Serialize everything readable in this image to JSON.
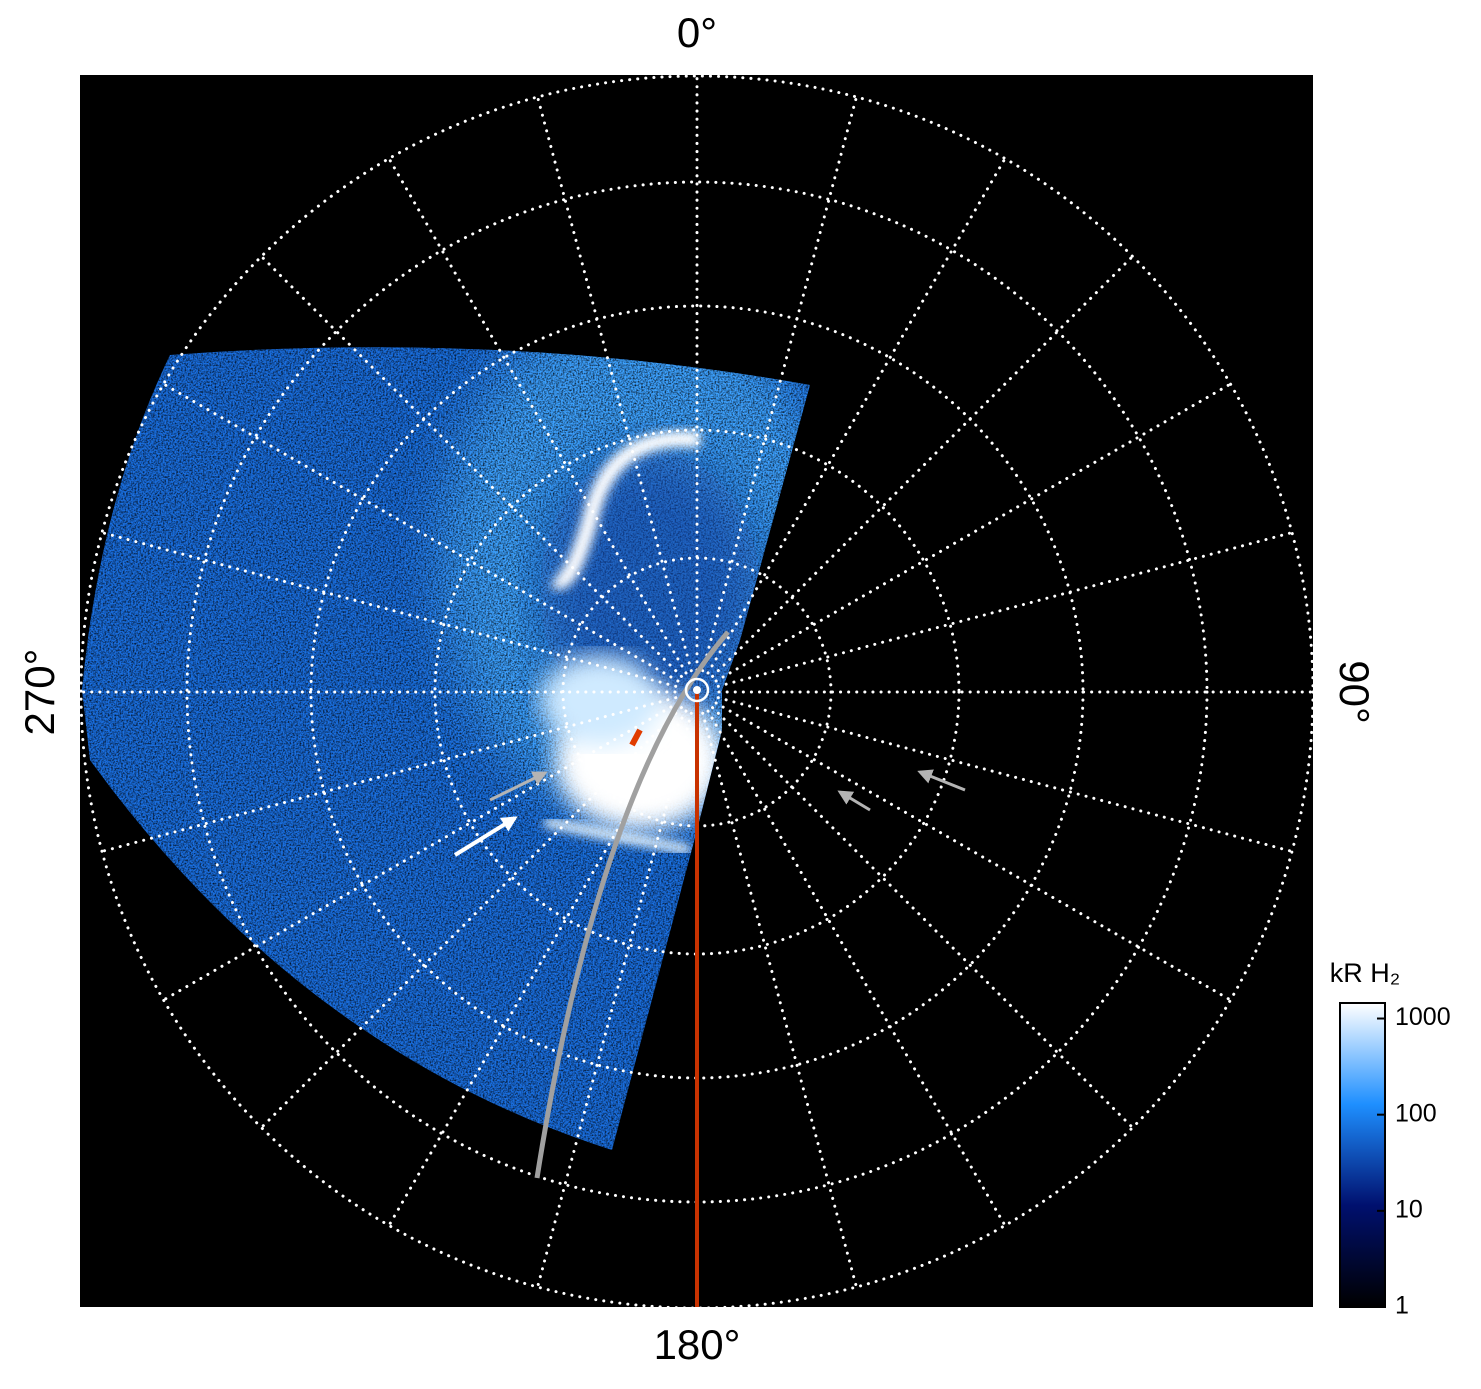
{
  "chart_data": {
    "type": "polar-image",
    "angle_ticks": [
      {
        "value": 0,
        "label": "0°"
      },
      {
        "value": 90,
        "label": "90°"
      },
      {
        "value": 180,
        "label": "180°"
      },
      {
        "value": 270,
        "label": "270°"
      }
    ],
    "colorbar": {
      "label": "kR H₂",
      "log": true,
      "lim": [
        1,
        1450
      ],
      "ticks": [
        1,
        10,
        100,
        1000
      ],
      "colormap": [
        "#000000",
        "#00106e",
        "#1e8fff",
        "#ffffff"
      ]
    }
  }
}
